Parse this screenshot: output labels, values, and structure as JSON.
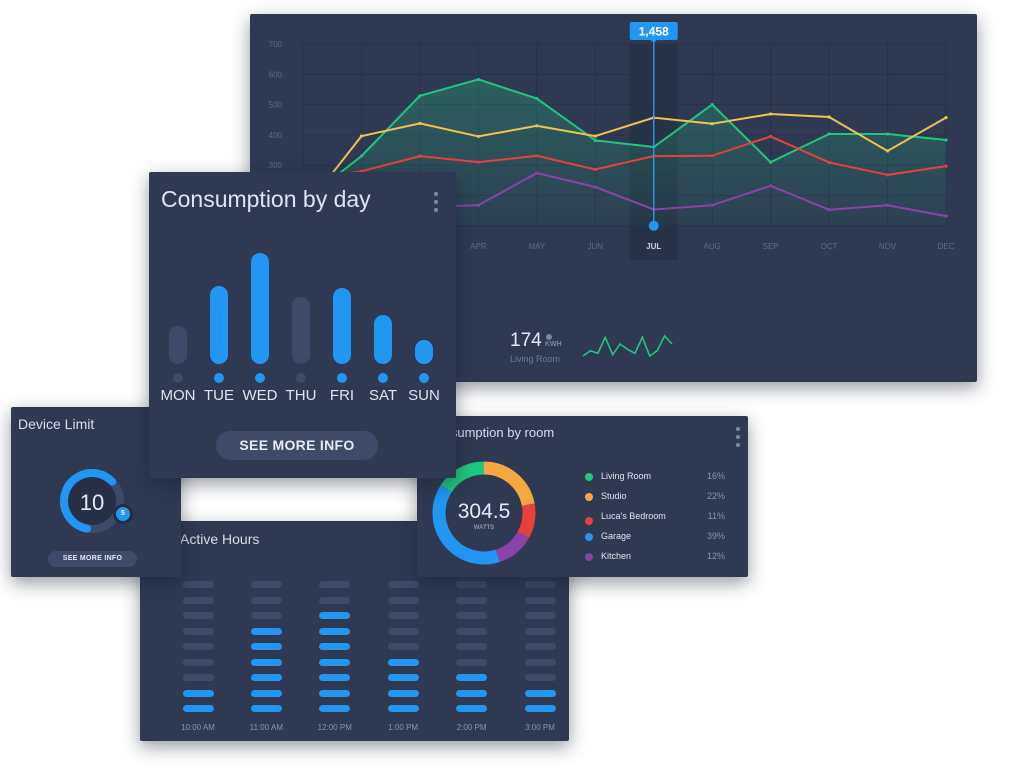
{
  "colors": {
    "accent": "#2196f3",
    "green": "#1fc77e",
    "yellow": "#f2c154",
    "red": "#e8413c",
    "purple": "#8a44a8",
    "inactive": "#3e4a68",
    "card": "#2f3a52"
  },
  "line_chart": {
    "chart_data": {
      "type": "line",
      "categories": [
        "JAN",
        "FEB",
        "MAR",
        "APR",
        "MAY",
        "JUN",
        "JUL",
        "AUG",
        "SEP",
        "OCT",
        "NOV",
        "DEC"
      ],
      "y_ticks": [
        700,
        600,
        500,
        400,
        300
      ],
      "ylim": [
        100,
        700
      ],
      "grid": true,
      "highlighted": "JUL",
      "tooltip": "1,458",
      "series": [
        {
          "color": "#1fc77e",
          "filled": true,
          "values": [
            180,
            330,
            529,
            583,
            520,
            382,
            360,
            500,
            310,
            403,
            403,
            383
          ]
        },
        {
          "color": "#f2c154",
          "values": [
            150,
            396,
            438,
            395,
            430,
            396,
            457,
            437,
            469,
            459,
            347,
            457
          ]
        },
        {
          "color": "#e8413c",
          "values": [
            250,
            280,
            330,
            310,
            331,
            286,
            330,
            331,
            395,
            309,
            268,
            297
          ]
        },
        {
          "color": "#8a44a8",
          "values": [
            150,
            140,
            161,
            168,
            274,
            228,
            154,
            168,
            232,
            153,
            168,
            132
          ]
        }
      ]
    },
    "stat": {
      "value": "174",
      "unit": "KWH",
      "label": "Living Room",
      "sparkline": [
        35,
        39,
        37,
        49,
        36,
        44,
        40,
        37,
        49,
        35,
        39,
        50,
        44
      ]
    }
  },
  "day_card": {
    "title": "Consumption by day",
    "chart_data": {
      "type": "bar",
      "categories": [
        "MON",
        "TUE",
        "WED",
        "THU",
        "FRI",
        "SAT",
        "SUN"
      ],
      "values": [
        38,
        78,
        111,
        67,
        76,
        49,
        24
      ],
      "active": [
        false,
        true,
        true,
        false,
        true,
        true,
        true
      ]
    },
    "button": "SEE MORE INFO"
  },
  "device_card": {
    "title": "Device Limit",
    "value": "10",
    "badge": "5",
    "fill": 0.6,
    "button": "SEE MORE INFO"
  },
  "room_card": {
    "title": "Consumption by room",
    "total": "304.5",
    "unit": "WATTS",
    "chart_data": {
      "type": "pie",
      "items": [
        {
          "label": "Studio",
          "pct": "22%",
          "value": 22,
          "color": "#f5a742"
        },
        {
          "label": "Luca's Bedroom",
          "pct": "11%",
          "value": 11,
          "color": "#e8413c"
        },
        {
          "label": "Kitchen",
          "pct": "12%",
          "value": 12,
          "color": "#8a44a8"
        },
        {
          "label": "Garage",
          "pct": "39%",
          "value": 39,
          "color": "#2196f3"
        },
        {
          "label": "Living Room",
          "pct": "16%",
          "value": 16,
          "color": "#1fc77e"
        }
      ]
    },
    "legend": [
      {
        "label": "Living Room",
        "pct": "16%",
        "color": "#1fc77e"
      },
      {
        "label": "Studio",
        "pct": "22%",
        "color": "#f5a742"
      },
      {
        "label": "Luca's Bedroom",
        "pct": "11%",
        "color": "#e8413c"
      },
      {
        "label": "Garage",
        "pct": "39%",
        "color": "#2196f3"
      },
      {
        "label": "Kitchen",
        "pct": "12%",
        "color": "#8a44a8"
      }
    ]
  },
  "hours_card": {
    "title": "Active Hours",
    "chart_data": {
      "type": "table",
      "slots_per_column": 9,
      "columns": [
        {
          "label": "10:00 AM",
          "active": 2
        },
        {
          "label": "11:00 AM",
          "active": 6
        },
        {
          "label": "12:00 PM",
          "active": 7
        },
        {
          "label": "1:00 PM",
          "active": 4
        },
        {
          "label": "2:00 PM",
          "active": 3
        },
        {
          "label": "3:00 PM",
          "active": 2
        }
      ]
    }
  }
}
